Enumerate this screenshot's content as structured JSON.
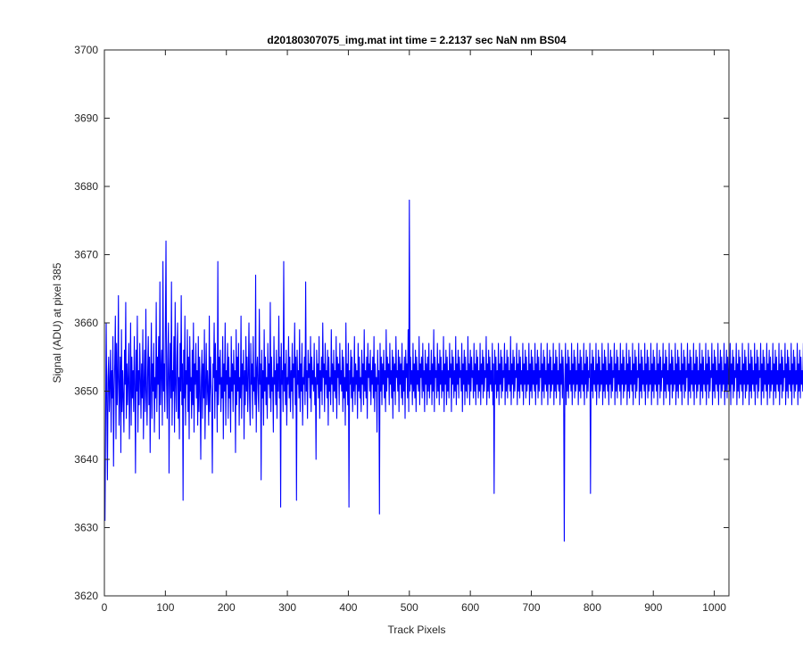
{
  "chart_data": {
    "type": "line",
    "title": "d20180307075_img.mat int time = 2.2137 sec  NaN nm BS04",
    "xlabel": "Track Pixels",
    "ylabel": "Signal (ADU) at pixel 385",
    "xlim": [
      0,
      1024
    ],
    "ylim": [
      3620,
      3700
    ],
    "x_ticks": [
      0,
      100,
      200,
      300,
      400,
      500,
      600,
      700,
      800,
      900,
      1000
    ],
    "y_ticks": [
      3620,
      3630,
      3640,
      3650,
      3660,
      3670,
      3680,
      3690,
      3700
    ],
    "grid": false,
    "series": [
      {
        "color": "#0000ff",
        "x_start": 1,
        "x_step": 1,
        "values": [
          3631,
          3645,
          3660,
          3648,
          3637,
          3652,
          3655,
          3647,
          3651,
          3656,
          3644,
          3653,
          3649,
          3658,
          3639,
          3650,
          3654,
          3661,
          3643,
          3657,
          3648,
          3652,
          3664,
          3645,
          3650,
          3655,
          3641,
          3659,
          3647,
          3653,
          3649,
          3644,
          3656,
          3651,
          3663,
          3646,
          3654,
          3648,
          3652,
          3657,
          3643,
          3650,
          3660,
          3645,
          3655,
          3649,
          3653,
          3647,
          3658,
          3651,
          3638,
          3656,
          3650,
          3661,
          3644,
          3653,
          3648,
          3657,
          3652,
          3646,
          3654,
          3649,
          3659,
          3643,
          3651,
          3656,
          3647,
          3662,
          3650,
          3645,
          3653,
          3658,
          3648,
          3655,
          3641,
          3651,
          3660,
          3646,
          3654,
          3650,
          3657,
          3644,
          3652,
          3649,
          3663,
          3647,
          3655,
          3651,
          3658,
          3643,
          3666,
          3648,
          3653,
          3656,
          3645,
          3669,
          3650,
          3654,
          3647,
          3659,
          3672,
          3651,
          3646,
          3655,
          3660,
          3638,
          3652,
          3657,
          3649,
          3666,
          3645,
          3653,
          3650,
          3658,
          3644,
          3663,
          3651,
          3647,
          3655,
          3660,
          3646,
          3652,
          3643,
          3657,
          3650,
          3664,
          3648,
          3654,
          3634,
          3656,
          3649,
          3661,
          3645,
          3653,
          3651,
          3659,
          3647,
          3655,
          3643,
          3658,
          3650,
          3652,
          3646,
          3656,
          3648,
          3660,
          3644,
          3654,
          3651,
          3657,
          3649,
          3653,
          3645,
          3658,
          3647,
          3655,
          3650,
          3640,
          3652,
          3656,
          3646,
          3654,
          3649,
          3659,
          3643,
          3651,
          3657,
          3648,
          3653,
          3650,
          3645,
          3661,
          3647,
          3655,
          3651,
          3649,
          3638,
          3654,
          3652,
          3660,
          3646,
          3657,
          3650,
          3653,
          3644,
          3669,
          3648,
          3655,
          3651,
          3656,
          3647,
          3652,
          3649,
          3658,
          3643,
          3654,
          3650,
          3660,
          3645,
          3653,
          3651,
          3657,
          3646,
          3655,
          3649,
          3652,
          3644,
          3658,
          3650,
          3654,
          3647,
          3656,
          3651,
          3653,
          3641,
          3659,
          3648,
          3655,
          3650,
          3657,
          3645,
          3652,
          3649,
          3661,
          3646,
          3654,
          3651,
          3656,
          3643,
          3653,
          3648,
          3658,
          3650,
          3655,
          3647,
          3652,
          3660,
          3649,
          3645,
          3657,
          3651,
          3654,
          3646,
          3658,
          3650,
          3652,
          3648,
          3667,
          3644,
          3653,
          3655,
          3650,
          3647,
          3662,
          3651,
          3654,
          3637,
          3656,
          3649,
          3653,
          3645,
          3659,
          3650,
          3655,
          3648,
          3652,
          3646,
          3657,
          3651,
          3654,
          3649,
          3663,
          3647,
          3655,
          3650,
          3652,
          3644,
          3658,
          3651,
          3653,
          3648,
          3656,
          3646,
          3654,
          3650,
          3661,
          3649,
          3655,
          3633,
          3657,
          3651,
          3653,
          3647,
          3669,
          3650,
          3654,
          3648,
          3656,
          3645,
          3652,
          3651,
          3658,
          3649,
          3655,
          3647,
          3653,
          3650,
          3657,
          3646,
          3654,
          3652,
          3660,
          3648,
          3655,
          3634,
          3656,
          3651,
          3653,
          3649,
          3659,
          3647,
          3654,
          3650,
          3657,
          3645,
          3652,
          3651,
          3655,
          3648,
          3666,
          3650,
          3653,
          3646,
          3656,
          3652,
          3654,
          3649,
          3658,
          3647,
          3655,
          3651,
          3653,
          3650,
          3657,
          3648,
          3652,
          3640,
          3656,
          3651,
          3654,
          3649,
          3658,
          3646,
          3653,
          3650,
          3655,
          3648,
          3660,
          3652,
          3654,
          3647,
          3657,
          3651,
          3653,
          3649,
          3656,
          3645,
          3655,
          3650,
          3652,
          3648,
          3659,
          3651,
          3654,
          3647,
          3656,
          3650,
          3653,
          3649,
          3658,
          3646,
          3655,
          3652,
          3654,
          3648,
          3657,
          3651,
          3653,
          3650,
          3656,
          3647,
          3655,
          3649,
          3652,
          3645,
          3660,
          3650,
          3654,
          3648,
          3657,
          3633,
          3653,
          3651,
          3656,
          3649,
          3655,
          3647,
          3652,
          3650,
          3658,
          3648,
          3654,
          3651,
          3653,
          3646,
          3657,
          3650,
          3655,
          3649,
          3652,
          3647,
          3656,
          3651,
          3654,
          3648,
          3659,
          3650,
          3653,
          3649,
          3655,
          3646,
          3657,
          3652,
          3654,
          3650,
          3656,
          3648,
          3653,
          3651,
          3655,
          3649,
          3658,
          3647,
          3654,
          3650,
          3652,
          3644,
          3656,
          3651,
          3653,
          3632,
          3657,
          3650,
          3655,
          3648,
          3654,
          3651,
          3656,
          3649,
          3653,
          3647,
          3659,
          3650,
          3655,
          3652,
          3654,
          3648,
          3657,
          3651,
          3653,
          3649,
          3656,
          3646,
          3655,
          3650,
          3654,
          3648,
          3658,
          3652,
          3653,
          3650,
          3656,
          3647,
          3655,
          3651,
          3654,
          3649,
          3657,
          3648,
          3653,
          3650,
          3655,
          3646,
          3656,
          3652,
          3654,
          3649,
          3659,
          3647,
          3678,
          3650,
          3655,
          3651,
          3653,
          3648,
          3657,
          3650,
          3654,
          3649,
          3656,
          3647,
          3655,
          3651,
          3653,
          3650,
          3658,
          3648,
          3654,
          3652,
          3655,
          3649,
          3657,
          3650,
          3653,
          3647,
          3656,
          3651,
          3654,
          3648,
          3655,
          3650,
          3657,
          3649,
          3653,
          3651,
          3656,
          3648,
          3654,
          3650,
          3659,
          3647,
          3655,
          3652,
          3653,
          3649,
          3657,
          3650,
          3654,
          3648,
          3656,
          3651,
          3655,
          3649,
          3653,
          3650,
          3658,
          3647,
          3654,
          3651,
          3656,
          3648,
          3655,
          3650,
          3653,
          3649,
          3657,
          3652,
          3654,
          3647,
          3656,
          3651,
          3655,
          3649,
          3653,
          3650,
          3658,
          3648,
          3654,
          3651,
          3656,
          3649,
          3655,
          3652,
          3653,
          3650,
          3657,
          3647,
          3654,
          3651,
          3656,
          3648,
          3655,
          3650,
          3653,
          3649,
          3658,
          3651,
          3654,
          3648,
          3656,
          3650,
          3655,
          3652,
          3653,
          3649,
          3657,
          3650,
          3654,
          3648,
          3656,
          3651,
          3655,
          3649,
          3653,
          3650,
          3657,
          3648,
          3654,
          3651,
          3656,
          3649,
          3655,
          3650,
          3653,
          3652,
          3658,
          3648,
          3654,
          3650,
          3656,
          3649,
          3655,
          3651,
          3653,
          3650,
          3657,
          3648,
          3654,
          3635,
          3656,
          3651,
          3655,
          3649,
          3653,
          3650,
          3657,
          3648,
          3654,
          3651,
          3656,
          3649,
          3655,
          3650,
          3653,
          3652,
          3657,
          3648,
          3654,
          3650,
          3656,
          3649,
          3655,
          3651,
          3653,
          3650,
          3658,
          3648,
          3654,
          3651,
          3656,
          3649,
          3655,
          3650,
          3653,
          3652,
          3657,
          3648,
          3654,
          3650,
          3656,
          3649,
          3655,
          3651,
          3653,
          3650,
          3657,
          3648,
          3654,
          3651,
          3656,
          3649,
          3655,
          3650,
          3653,
          3651,
          3657,
          3648,
          3654,
          3650,
          3656,
          3649,
          3655,
          3651,
          3653,
          3650,
          3657,
          3648,
          3654,
          3651,
          3656,
          3649,
          3655,
          3650,
          3653,
          3652,
          3657,
          3648,
          3654,
          3650,
          3656,
          3649,
          3655,
          3651,
          3653,
          3650,
          3657,
          3648,
          3654,
          3651,
          3656,
          3649,
          3655,
          3650,
          3653,
          3651,
          3657,
          3648,
          3654,
          3650,
          3656,
          3649,
          3655,
          3651,
          3653,
          3650,
          3657,
          3648,
          3654,
          3651,
          3656,
          3649,
          3655,
          3650,
          3628,
          3652,
          3657,
          3648,
          3654,
          3650,
          3656,
          3649,
          3655,
          3651,
          3653,
          3650,
          3657,
          3648,
          3654,
          3651,
          3656,
          3649,
          3655,
          3650,
          3653,
          3651,
          3657,
          3648,
          3654,
          3650,
          3656,
          3649,
          3655,
          3651,
          3653,
          3650,
          3657,
          3648,
          3654,
          3651,
          3656,
          3649,
          3655,
          3650,
          3653,
          3652,
          3657,
          3635,
          3654,
          3650,
          3656,
          3649,
          3655,
          3651,
          3653,
          3650,
          3657,
          3648,
          3654,
          3651,
          3656,
          3649,
          3655,
          3650,
          3653,
          3651,
          3657,
          3648,
          3654,
          3650,
          3656,
          3649,
          3655,
          3651,
          3653,
          3650,
          3657,
          3648,
          3654,
          3651,
          3656,
          3649,
          3655,
          3650,
          3653,
          3652,
          3657,
          3648,
          3654,
          3650,
          3656,
          3649,
          3655,
          3651,
          3653,
          3650,
          3657,
          3648,
          3654,
          3651,
          3656,
          3649,
          3655,
          3650,
          3653,
          3651,
          3657,
          3648,
          3654,
          3650,
          3656,
          3649,
          3655,
          3651,
          3653,
          3650,
          3657,
          3648,
          3654,
          3651,
          3656,
          3649,
          3655,
          3650,
          3653,
          3652,
          3657,
          3648,
          3654,
          3650,
          3656,
          3649,
          3655,
          3651,
          3653,
          3650,
          3657,
          3648,
          3654,
          3651,
          3656,
          3649,
          3655,
          3650,
          3653,
          3651,
          3657,
          3648,
          3654,
          3650,
          3656,
          3649,
          3655,
          3651,
          3653,
          3650,
          3657,
          3648,
          3654,
          3651,
          3656,
          3649,
          3655,
          3650,
          3653,
          3652,
          3657,
          3648,
          3654,
          3650,
          3656,
          3649,
          3655,
          3651,
          3653,
          3650,
          3657,
          3648,
          3654,
          3651,
          3656,
          3649,
          3655,
          3650,
          3653,
          3651,
          3657,
          3648,
          3654,
          3650,
          3656,
          3649,
          3655,
          3651,
          3653,
          3650,
          3657,
          3648,
          3654,
          3651,
          3656,
          3649,
          3655,
          3650,
          3653,
          3652,
          3657,
          3648,
          3654,
          3650,
          3656,
          3649,
          3655,
          3651,
          3653,
          3650,
          3657,
          3648,
          3654,
          3651,
          3656,
          3649,
          3655,
          3650,
          3653,
          3651,
          3657,
          3648,
          3654,
          3650,
          3656,
          3649,
          3655,
          3651,
          3653,
          3650,
          3657,
          3648,
          3654,
          3651,
          3656,
          3649,
          3655,
          3650,
          3653,
          3652,
          3657,
          3648,
          3654,
          3650,
          3656,
          3649,
          3655,
          3651,
          3653,
          3650,
          3657,
          3648,
          3654,
          3651,
          3656,
          3649,
          3655,
          3650,
          3653,
          3651,
          3657,
          3648,
          3654,
          3650,
          3656,
          3649,
          3655,
          3651,
          3653,
          3650,
          3657,
          3648,
          3654,
          3651,
          3656,
          3649,
          3655,
          3650,
          3653,
          3652,
          3657,
          3648,
          3654,
          3650,
          3656,
          3649,
          3655,
          3651,
          3653,
          3650,
          3657,
          3648,
          3654,
          3651,
          3656,
          3649,
          3655,
          3650,
          3653,
          3651,
          3657,
          3648,
          3654,
          3650,
          3656,
          3649,
          3655,
          3651,
          3653,
          3650,
          3657,
          3648,
          3654,
          3651,
          3656,
          3649,
          3655,
          3650,
          3653,
          3652,
          3657,
          3648,
          3654,
          3650,
          3656,
          3649,
          3655,
          3651,
          3653,
          3650,
          3657,
          3648,
          3654,
          3651,
          3656,
          3649,
          3655,
          3650,
          3653,
          3651,
          3657,
          3648,
          3654,
          3650,
          3656,
          3649,
          3655,
          3651,
          3653,
          3650,
          3657,
          3648,
          3654,
          3651,
          3656,
          3649,
          3655,
          3650,
          3653,
          3652,
          3657,
          3648,
          3654,
          3650,
          3656,
          3649,
          3655,
          3651,
          3653,
          3650,
          3657,
          3648,
          3654,
          3651,
          3656,
          3649,
          3655,
          3650,
          3653,
          3651,
          3657,
          3648,
          3654,
          3650,
          3656,
          3649,
          3655,
          3651,
          3653,
          3650,
          3657,
          3648,
          3654,
          3651,
          3656,
          3649,
          3655,
          3650,
          3653,
          3652,
          3657,
          3648,
          3654,
          3650,
          3656,
          3649,
          3655,
          3651,
          3653,
          3650,
          3657,
          3648,
          3654,
          3651,
          3656,
          3649,
          3655,
          3650,
          3653,
          3651,
          3657,
          3648,
          3654,
          3650,
          3656,
          3649,
          3655,
          3651,
          3653,
          3650
        ]
      }
    ]
  }
}
